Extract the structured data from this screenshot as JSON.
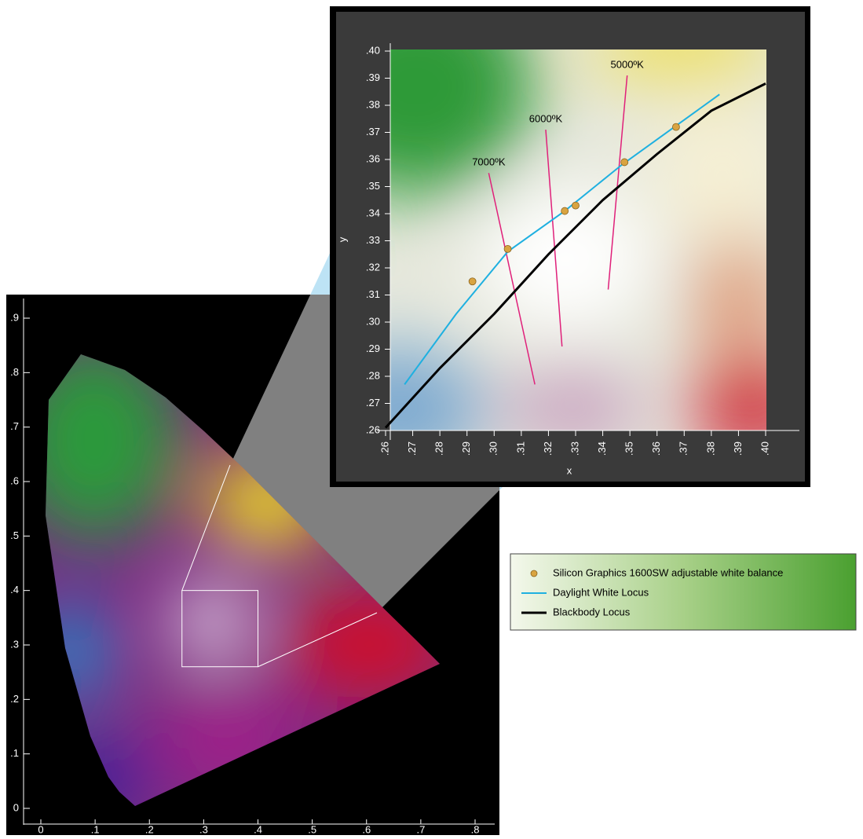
{
  "chart_data": [
    {
      "type": "chromaticity",
      "xlim": [
        0,
        0.8
      ],
      "ylim": [
        0,
        0.9
      ],
      "xticks": [
        0,
        {
          "value": 0.1,
          "label": ".1"
        },
        {
          "value": 0.2,
          "label": ".2"
        },
        {
          "value": 0.3,
          "label": ".3"
        },
        {
          "value": 0.4,
          "label": ".4"
        },
        {
          "value": 0.5,
          "label": ".5"
        },
        {
          "value": 0.6,
          "label": ".6"
        },
        {
          "value": 0.7,
          "label": ".7"
        },
        {
          "value": 0.8,
          "label": ".8"
        }
      ],
      "yticks": [
        0,
        {
          "value": 0.1,
          "label": ".1"
        },
        {
          "value": 0.2,
          "label": ".2"
        },
        {
          "value": 0.3,
          "label": ".3"
        },
        {
          "value": 0.4,
          "label": ".4"
        },
        {
          "value": 0.5,
          "label": ".5"
        },
        {
          "value": 0.6,
          "label": ".6"
        },
        {
          "value": 0.7,
          "label": ".7"
        },
        {
          "value": 0.8,
          "label": ".8"
        },
        {
          "value": 0.9,
          "label": ".9"
        }
      ],
      "zoom_box": {
        "x": [
          0.26,
          0.4
        ],
        "y": [
          0.26,
          0.4
        ]
      }
    },
    {
      "type": "line",
      "xlabel": "x",
      "ylabel": "y",
      "xlim": [
        0.26,
        0.4
      ],
      "ylim": [
        0.26,
        0.4
      ],
      "xticks": [
        {
          "value": 0.26,
          "label": ".26"
        },
        {
          "value": 0.27,
          "label": ".27"
        },
        {
          "value": 0.28,
          "label": ".28"
        },
        {
          "value": 0.29,
          "label": ".29"
        },
        {
          "value": 0.3,
          "label": ".30"
        },
        {
          "value": 0.31,
          "label": ".31"
        },
        {
          "value": 0.32,
          "label": ".32"
        },
        {
          "value": 0.33,
          "label": ".33"
        },
        {
          "value": 0.34,
          "label": ".34"
        },
        {
          "value": 0.35,
          "label": ".35"
        },
        {
          "value": 0.36,
          "label": ".36"
        },
        {
          "value": 0.37,
          "label": ".37"
        },
        {
          "value": 0.38,
          "label": ".38"
        },
        {
          "value": 0.39,
          "label": ".39"
        },
        {
          "value": 0.4,
          "label": ".40"
        }
      ],
      "yticks": [
        {
          "value": 0.26,
          "label": ".26"
        },
        {
          "value": 0.27,
          "label": ".27"
        },
        {
          "value": 0.28,
          "label": ".28"
        },
        {
          "value": 0.29,
          "label": ".29"
        },
        {
          "value": 0.3,
          "label": ".30"
        },
        {
          "value": 0.31,
          "label": ".31"
        },
        {
          "value": 0.32,
          "label": ".32"
        },
        {
          "value": 0.33,
          "label": ".33"
        },
        {
          "value": 0.34,
          "label": ".34"
        },
        {
          "value": 0.35,
          "label": ".35"
        },
        {
          "value": 0.36,
          "label": ".36"
        },
        {
          "value": 0.37,
          "label": ".37"
        },
        {
          "value": 0.38,
          "label": ".38"
        },
        {
          "value": 0.39,
          "label": ".39"
        },
        {
          "value": 0.4,
          "label": ".40"
        }
      ],
      "series": [
        {
          "name": "Silicon Graphics 1600SW adjustable white balance",
          "type": "scatter",
          "color": "#d9a441",
          "x": [
            0.292,
            0.305,
            0.326,
            0.33,
            0.348,
            0.367
          ],
          "values": [
            0.315,
            0.327,
            0.341,
            0.343,
            0.359,
            0.372
          ]
        },
        {
          "name": "Daylight White Locus",
          "type": "line",
          "color": "#1fb0e0",
          "x": [
            0.267,
            0.286,
            0.305,
            0.326,
            0.347,
            0.383
          ],
          "values": [
            0.277,
            0.303,
            0.326,
            0.341,
            0.358,
            0.384
          ]
        },
        {
          "name": "Blackbody Locus",
          "type": "line",
          "color": "#000000",
          "x": [
            0.26,
            0.28,
            0.3,
            0.32,
            0.34,
            0.36,
            0.38,
            0.4
          ],
          "values": [
            0.261,
            0.283,
            0.303,
            0.325,
            0.345,
            0.362,
            0.378,
            0.388
          ]
        }
      ],
      "isotherms": [
        {
          "label": "7000ºK",
          "color": "#e0207a",
          "x": [
            0.298,
            0.315
          ],
          "values": [
            0.355,
            0.277
          ]
        },
        {
          "label": "6000ºK",
          "color": "#e0207a",
          "x": [
            0.319,
            0.325
          ],
          "values": [
            0.371,
            0.291
          ]
        },
        {
          "label": "5000ºK",
          "color": "#e0207a",
          "x": [
            0.349,
            0.342
          ],
          "values": [
            0.391,
            0.312
          ]
        }
      ]
    }
  ]
}
